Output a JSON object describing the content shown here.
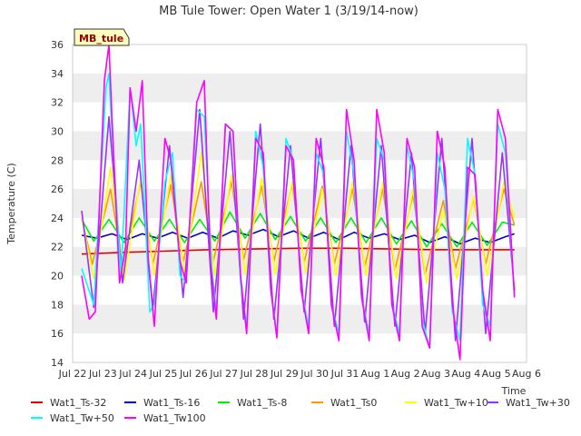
{
  "chart_data": {
    "type": "line",
    "title": "MB Tule Tower: Open Water 1 (3/19/14-now)",
    "xlabel": "Time",
    "ylabel": "Temperature (C)",
    "station_label": "MB_tule",
    "ylim": [
      14,
      36
    ],
    "yticks": [
      14,
      16,
      18,
      20,
      22,
      24,
      26,
      28,
      30,
      32,
      34,
      36
    ],
    "xlim": [
      0,
      15
    ],
    "xticks": [
      {
        "pos": 0,
        "label": "Jul 22"
      },
      {
        "pos": 1,
        "label": "Jul 23"
      },
      {
        "pos": 2,
        "label": "Jul 24"
      },
      {
        "pos": 3,
        "label": "Jul 25"
      },
      {
        "pos": 4,
        "label": "Jul 26"
      },
      {
        "pos": 5,
        "label": "Jul 27"
      },
      {
        "pos": 6,
        "label": "Jul 28"
      },
      {
        "pos": 7,
        "label": "Jul 29"
      },
      {
        "pos": 8,
        "label": "Jul 30"
      },
      {
        "pos": 9,
        "label": "Jul 31"
      },
      {
        "pos": 10,
        "label": "Aug 1"
      },
      {
        "pos": 11,
        "label": "Aug 2"
      },
      {
        "pos": 12,
        "label": "Aug 3"
      },
      {
        "pos": 13,
        "label": "Aug 4"
      },
      {
        "pos": 14,
        "label": "Aug 5"
      },
      {
        "pos": 15,
        "label": "Aug 6"
      }
    ],
    "grid": "horizontal-bands",
    "legend_position": "bottom",
    "x_note": "x = days since Jul 22 00:00",
    "series": [
      {
        "name": "Wat1_Ts-32",
        "color": "#dd0000",
        "x": [
          0.3,
          1.5,
          3,
          4.5,
          6,
          7.5,
          9,
          10.5,
          12,
          13.5,
          14.6
        ],
        "values": [
          21.5,
          21.6,
          21.7,
          21.8,
          21.85,
          21.9,
          21.9,
          21.85,
          21.8,
          21.8,
          21.8
        ]
      },
      {
        "name": "Wat1_Ts-16",
        "color": "#0000cc",
        "x": [
          0.3,
          0.8,
          1.3,
          1.8,
          2.3,
          2.8,
          3.3,
          3.8,
          4.3,
          4.8,
          5.3,
          5.8,
          6.3,
          6.8,
          7.3,
          7.8,
          8.3,
          8.8,
          9.3,
          9.8,
          10.3,
          10.8,
          11.3,
          11.8,
          12.3,
          12.8,
          13.3,
          13.8,
          14.3,
          14.6
        ],
        "values": [
          22.8,
          22.6,
          22.9,
          22.5,
          22.9,
          22.6,
          23.0,
          22.6,
          23.0,
          22.6,
          23.1,
          22.8,
          23.2,
          22.7,
          23.1,
          22.6,
          23.0,
          22.5,
          23.0,
          22.6,
          22.9,
          22.5,
          22.8,
          22.3,
          22.7,
          22.2,
          22.6,
          22.3,
          22.7,
          22.9
        ]
      },
      {
        "name": "Wat1_Ts-8",
        "color": "#00ee00",
        "x": [
          0.3,
          0.7,
          1.2,
          1.7,
          2.2,
          2.7,
          3.2,
          3.7,
          4.2,
          4.7,
          5.2,
          5.7,
          6.2,
          6.7,
          7.2,
          7.7,
          8.2,
          8.7,
          9.2,
          9.7,
          10.2,
          10.7,
          11.2,
          11.7,
          12.2,
          12.7,
          13.2,
          13.7,
          14.2,
          14.6
        ],
        "values": [
          23.9,
          22.4,
          23.9,
          22.3,
          24.0,
          22.4,
          23.9,
          22.3,
          23.9,
          22.4,
          24.4,
          22.6,
          24.3,
          22.5,
          24.1,
          22.4,
          24.0,
          22.3,
          24.0,
          22.3,
          24.0,
          22.2,
          23.8,
          22.0,
          23.6,
          22.0,
          23.7,
          22.1,
          23.7,
          23.5
        ]
      },
      {
        "name": "Wat1_Ts0",
        "color": "#ff9900",
        "x": [
          0.3,
          0.65,
          1.25,
          1.65,
          2.25,
          2.65,
          3.25,
          3.65,
          4.25,
          4.65,
          5.25,
          5.65,
          6.25,
          6.65,
          7.25,
          7.65,
          8.25,
          8.65,
          9.25,
          9.65,
          10.25,
          10.65,
          11.25,
          11.65,
          12.25,
          12.65,
          13.25,
          13.65,
          14.25,
          14.6
        ],
        "values": [
          24.0,
          20.8,
          26.0,
          20.7,
          26.5,
          20.8,
          26.3,
          20.9,
          26.5,
          21.0,
          26.5,
          21.1,
          26.2,
          21.0,
          26.3,
          20.9,
          26.2,
          20.8,
          26.0,
          20.6,
          26.0,
          20.4,
          25.6,
          20.1,
          25.2,
          20.5,
          25.3,
          20.8,
          26.0,
          23.5
        ]
      },
      {
        "name": "Wat1_Tw+10",
        "color": "#ffff00",
        "x": [
          0.3,
          0.7,
          1.25,
          1.7,
          2.25,
          2.7,
          3.25,
          3.7,
          4.25,
          4.7,
          5.25,
          5.7,
          6.25,
          6.7,
          7.25,
          7.7,
          8.25,
          8.7,
          9.25,
          9.7,
          10.25,
          10.7,
          11.25,
          11.7,
          12.25,
          12.7,
          13.25,
          13.7,
          14.25,
          14.6
        ],
        "values": [
          24.0,
          19.8,
          27.5,
          19.7,
          26.8,
          20.0,
          27.0,
          20.2,
          28.5,
          20.0,
          27.0,
          20.1,
          26.8,
          20.1,
          26.5,
          20.2,
          26.0,
          20.0,
          26.5,
          20.0,
          26.5,
          19.8,
          26.0,
          19.5,
          24.5,
          19.8,
          25.5,
          20.0,
          26.5,
          24.0
        ]
      },
      {
        "name": "Wat1_Tw+30",
        "color": "#9933ff",
        "x": [
          0.3,
          0.7,
          1.2,
          1.65,
          2.2,
          2.65,
          3.2,
          3.65,
          4.2,
          4.65,
          5.2,
          5.65,
          6.2,
          6.65,
          7.2,
          7.65,
          8.2,
          8.65,
          9.2,
          9.65,
          10.2,
          10.65,
          11.2,
          11.65,
          12.2,
          12.65,
          13.2,
          13.65,
          14.2,
          14.6
        ],
        "values": [
          24.5,
          17.8,
          31.0,
          19.5,
          28.0,
          17.8,
          29.0,
          18.5,
          31.5,
          17.5,
          30.0,
          17.0,
          30.5,
          17.0,
          29.0,
          17.5,
          29.5,
          16.5,
          29.0,
          16.8,
          29.0,
          16.5,
          28.5,
          16.0,
          29.5,
          15.5,
          29.5,
          16.0,
          28.5,
          19.0
        ]
      },
      {
        "name": "Wat1_Tw+50",
        "color": "#00ffff",
        "x": [
          0.3,
          0.7,
          1.1,
          1.2,
          1.3,
          1.6,
          1.9,
          2.1,
          2.25,
          2.55,
          2.7,
          3.05,
          3.3,
          3.55,
          3.75,
          4.1,
          4.35,
          4.6,
          4.75,
          5.05,
          5.3,
          5.55,
          5.75,
          6.05,
          6.3,
          6.55,
          6.75,
          7.05,
          7.3,
          7.55,
          7.8,
          8.05,
          8.3,
          8.55,
          8.8,
          9.05,
          9.3,
          9.55,
          9.8,
          10.05,
          10.3,
          10.55,
          10.8,
          11.05,
          11.3,
          11.55,
          11.8,
          12.05,
          12.3,
          12.55,
          12.8,
          13.05,
          13.3,
          13.55,
          13.8,
          14.05,
          14.3,
          14.6
        ],
        "values": [
          20.5,
          18.0,
          33.0,
          34.0,
          30.0,
          20.0,
          33.0,
          29.0,
          30.5,
          17.5,
          18.0,
          26.5,
          28.5,
          20.0,
          19.5,
          31.5,
          31.0,
          20.5,
          17.5,
          30.5,
          30.0,
          19.5,
          16.5,
          30.0,
          27.5,
          19.0,
          16.0,
          29.5,
          28.0,
          19.0,
          16.5,
          28.5,
          27.0,
          18.0,
          16.0,
          30.0,
          27.0,
          18.5,
          16.0,
          29.5,
          28.0,
          18.0,
          16.0,
          29.0,
          26.5,
          17.0,
          15.0,
          28.5,
          26.0,
          17.5,
          15.5,
          29.5,
          27.0,
          18.0,
          16.5,
          30.5,
          28.5,
          18.5
        ]
      },
      {
        "name": "Wat1_Tw100",
        "color": "#ff00ff",
        "x": [
          0.3,
          0.55,
          0.75,
          1.05,
          1.2,
          1.3,
          1.55,
          1.75,
          1.9,
          2.1,
          2.3,
          2.5,
          2.7,
          3.05,
          3.25,
          3.55,
          3.75,
          4.1,
          4.35,
          4.55,
          4.75,
          5.05,
          5.3,
          5.55,
          5.75,
          6.05,
          6.3,
          6.55,
          6.75,
          7.05,
          7.3,
          7.55,
          7.8,
          8.05,
          8.3,
          8.55,
          8.8,
          9.05,
          9.3,
          9.55,
          9.8,
          10.05,
          10.3,
          10.55,
          10.8,
          11.05,
          11.3,
          11.55,
          11.8,
          12.05,
          12.3,
          12.55,
          12.8,
          13.05,
          13.3,
          13.55,
          13.8,
          14.05,
          14.3,
          14.6
        ],
        "values": [
          20.0,
          17.0,
          17.5,
          33.5,
          36.0,
          31.0,
          19.5,
          22.0,
          33.0,
          30.0,
          33.5,
          21.0,
          16.5,
          29.5,
          28.0,
          21.0,
          19.5,
          32.0,
          33.5,
          21.0,
          17.0,
          30.5,
          30.0,
          20.0,
          16.0,
          29.5,
          28.5,
          19.0,
          15.7,
          29.0,
          28.0,
          19.0,
          16.0,
          29.5,
          27.5,
          18.0,
          15.5,
          31.5,
          28.0,
          18.5,
          15.5,
          31.5,
          28.5,
          18.0,
          15.5,
          29.5,
          27.5,
          16.5,
          15.0,
          30.0,
          27.5,
          18.0,
          14.2,
          27.5,
          27.0,
          19.0,
          15.5,
          31.5,
          29.5,
          18.5
        ]
      }
    ]
  }
}
